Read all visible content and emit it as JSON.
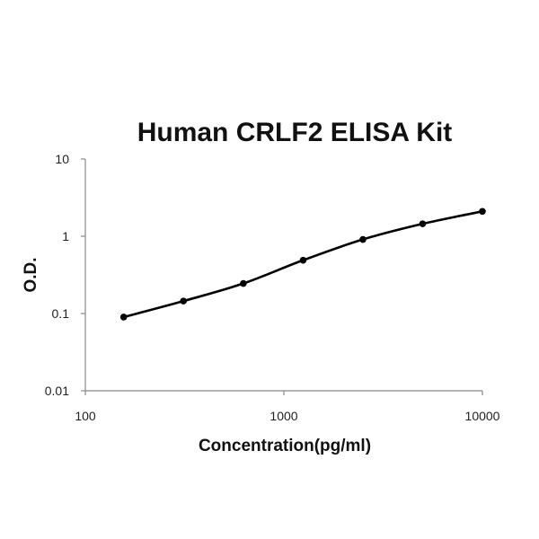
{
  "chart_data": {
    "type": "line",
    "title": "Human CRLF2 ELISA Kit",
    "xlabel": "Concentration(pg/ml)",
    "ylabel": "O.D.",
    "xscale": "log",
    "yscale": "log",
    "xlim": [
      100,
      10000
    ],
    "ylim": [
      0.01,
      10
    ],
    "x_ticks": [
      "100",
      "1000",
      "10000"
    ],
    "y_ticks": [
      "10",
      "1",
      "0.1",
      "0.01"
    ],
    "grid": false,
    "legend": "none",
    "series": [
      {
        "x": [
          156,
          312,
          625,
          1250,
          2500,
          5000,
          10000
        ],
        "y": [
          0.09,
          0.145,
          0.245,
          0.49,
          0.91,
          1.45,
          2.1
        ]
      }
    ],
    "colors": {
      "line": "#000000",
      "axis": "#888888"
    }
  }
}
